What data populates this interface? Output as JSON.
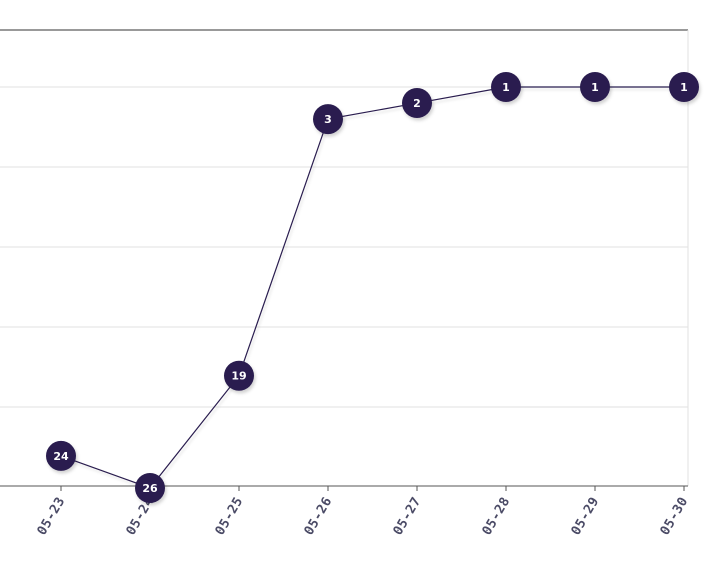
{
  "chart_data": {
    "type": "line",
    "categories": [
      "05-23",
      "05-24",
      "05-25",
      "05-26",
      "05-27",
      "05-28",
      "05-29",
      "05-30"
    ],
    "series": [
      {
        "values": [
          24,
          26,
          19,
          3,
          2,
          1,
          1,
          1
        ],
        "color": "#2a1f4f"
      }
    ],
    "ylim": [
      31,
      1
    ],
    "y_reversed": true,
    "grid": true,
    "point_labels": true,
    "marker_style": "filled-circle-with-value"
  }
}
